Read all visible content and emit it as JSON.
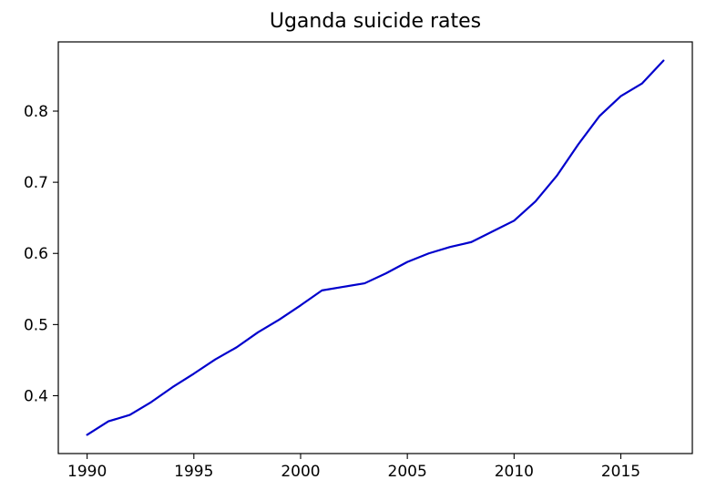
{
  "chart_data": {
    "type": "line",
    "title": "Uganda suicide rates",
    "xlabel": "",
    "ylabel": "",
    "x": [
      1990,
      1991,
      1992,
      1993,
      1994,
      1995,
      1996,
      1997,
      1998,
      1999,
      2000,
      2001,
      2002,
      2003,
      2004,
      2005,
      2006,
      2007,
      2008,
      2009,
      2010,
      2011,
      2012,
      2013,
      2014,
      2015,
      2016,
      2017
    ],
    "series": [
      {
        "color": "#0000cc",
        "values": [
          0.345,
          0.364,
          0.373,
          0.391,
          0.412,
          0.431,
          0.451,
          0.468,
          0.489,
          0.507,
          0.527,
          0.548,
          0.553,
          0.558,
          0.572,
          0.588,
          0.6,
          0.609,
          0.616,
          0.631,
          0.646,
          0.673,
          0.709,
          0.753,
          0.793,
          0.821,
          0.839,
          0.871
        ]
      }
    ],
    "xticks": [
      1990,
      1995,
      2000,
      2005,
      2010,
      2015
    ],
    "xtick_labels": [
      "1990",
      "1995",
      "2000",
      "2005",
      "2010",
      "2015"
    ],
    "yticks": [
      0.4,
      0.5,
      0.6,
      0.7,
      0.8
    ],
    "ytick_labels": [
      "0.4",
      "0.5",
      "0.6",
      "0.7",
      "0.8"
    ],
    "xlim": [
      1988.65,
      2018.35
    ],
    "ylim": [
      0.3187,
      0.8973
    ],
    "grid": false,
    "legend": "none"
  }
}
